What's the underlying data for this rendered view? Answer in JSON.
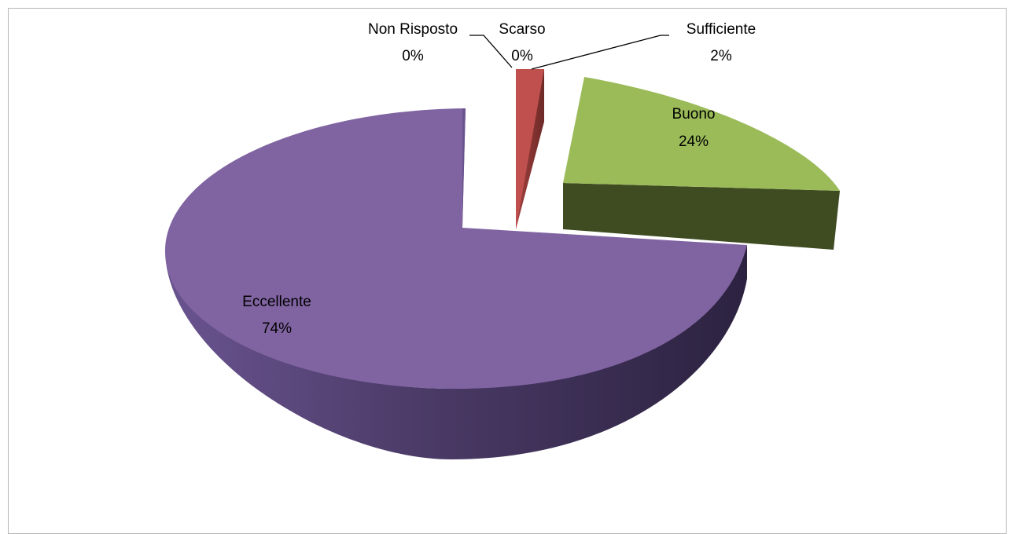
{
  "chart_data": {
    "type": "pie",
    "title": "",
    "categories": [
      "Non Risposto",
      "Scarso",
      "Sufficiente",
      "Buono",
      "Eccellente"
    ],
    "values": [
      0,
      0,
      2,
      24,
      74
    ],
    "labels": [
      {
        "name": "Non Risposto",
        "value": "0%"
      },
      {
        "name": "Scarso",
        "value": "0%"
      },
      {
        "name": "Sufficiente",
        "value": "2%"
      },
      {
        "name": "Buono",
        "value": "24%"
      },
      {
        "name": "Eccellente",
        "value": "74%"
      }
    ],
    "colors": {
      "Non Risposto": "#4f81bd",
      "Scarso": "#4f81bd",
      "Sufficiente": "#c0504d",
      "Buono": "#9bbb59",
      "Eccellente": "#8064a2"
    },
    "legend": "none",
    "style": "3d-exploded"
  }
}
